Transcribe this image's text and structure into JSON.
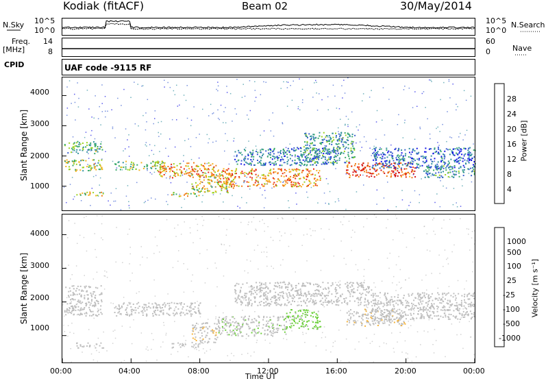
{
  "header": {
    "station": "Kodiak (fitACF)",
    "beam": "Beam 02",
    "date": "30/May/2014"
  },
  "aux_panels": {
    "nsky_label": "N.Sky",
    "nsky_ticks": [
      "10^5",
      "10^0"
    ],
    "nsearch_label": "N.Search",
    "nsearch_ticks": [
      "10^5",
      "10^0"
    ],
    "freq_label": "Freq.",
    "freq_unit": "[MHz]",
    "freq_ticks": [
      "14",
      "8"
    ],
    "nave_label": "Nave",
    "nave_ticks": [
      "60",
      "0"
    ],
    "cpid_label": "CPID",
    "cpid_text": "UAF code -9115 RF"
  },
  "chart_data": [
    {
      "type": "heatmap",
      "name": "power-panel",
      "ylabel": "Slant Range [km]",
      "ylim": [
        200,
        4600
      ],
      "yticks": [
        1000,
        2000,
        3000,
        4000
      ],
      "xlim": [
        0,
        24
      ],
      "colorbar": {
        "label": "Power [dB]",
        "ticks": [
          "28",
          "24",
          "20",
          "16",
          "12",
          "8",
          "4"
        ],
        "range": [
          0,
          32
        ],
        "colors": [
          "#1414e6",
          "#3a5fd0",
          "#2f8f9e",
          "#3aaa6a",
          "#9bd21e",
          "#f5b21e",
          "#f07a14",
          "#e62814",
          "#d20f0f"
        ]
      },
      "bands": [
        {
          "t0": 0.1,
          "t1": 2.3,
          "r0": 2100,
          "r1": 2500,
          "power": 12
        },
        {
          "t0": 0.1,
          "t1": 2.3,
          "r0": 1500,
          "r1": 1900,
          "power": 16
        },
        {
          "t0": 0.8,
          "t1": 2.4,
          "r0": 700,
          "r1": 850,
          "power": 18
        },
        {
          "t0": 3.0,
          "t1": 6.0,
          "r0": 1550,
          "r1": 1850,
          "power": 14
        },
        {
          "t0": 5.5,
          "t1": 9.0,
          "r0": 1300,
          "r1": 1800,
          "power": 22
        },
        {
          "t0": 6.3,
          "t1": 8.0,
          "r0": 680,
          "r1": 820,
          "power": 18
        },
        {
          "t0": 7.5,
          "t1": 10.0,
          "r0": 800,
          "r1": 1400,
          "power": 18
        },
        {
          "t0": 9.0,
          "t1": 15.0,
          "r0": 1000,
          "r1": 1600,
          "power": 22
        },
        {
          "t0": 10.0,
          "t1": 16.0,
          "r0": 1700,
          "r1": 2300,
          "power": 8
        },
        {
          "t0": 14.0,
          "t1": 17.0,
          "r0": 1800,
          "r1": 2800,
          "power": 10
        },
        {
          "t0": 16.5,
          "t1": 20.5,
          "r0": 1300,
          "r1": 1800,
          "power": 26
        },
        {
          "t0": 18.0,
          "t1": 24.0,
          "r0": 1600,
          "r1": 2300,
          "power": 6
        },
        {
          "t0": 21.0,
          "t1": 24.0,
          "r0": 1300,
          "r1": 1700,
          "power": 10
        }
      ]
    },
    {
      "type": "heatmap",
      "name": "velocity-panel",
      "ylabel": "Slant Range [km]",
      "ylim": [
        200,
        4600
      ],
      "yticks": [
        1000,
        2000,
        3000,
        4000
      ],
      "xlabel": "Time UT",
      "xlim": [
        0,
        24
      ],
      "xticks": [
        "00:00",
        "04:00",
        "08:00",
        "12:00",
        "16:00",
        "20:00",
        "00:00"
      ],
      "colorbar": {
        "label": "Velocity [m s⁻¹]",
        "ticks": [
          "1000",
          "500",
          "100",
          "25",
          "-25",
          "-100",
          "-500",
          "-1000"
        ],
        "range": [
          -1200,
          1200
        ],
        "colors": [
          "#e61414",
          "#f04a1e",
          "#f5871e",
          "#f5b43c",
          "#bebebe",
          "#bebebe",
          "#6ccf3a",
          "#3aaa4a",
          "#2a7a9e",
          "#2a4fc8"
        ]
      },
      "bands": [
        {
          "t0": 0.1,
          "t1": 2.3,
          "r0": 1600,
          "r1": 2500,
          "velocity": 0
        },
        {
          "t0": 3.0,
          "t1": 8.0,
          "r0": 1600,
          "r1": 2000,
          "velocity": 0
        },
        {
          "t0": 0.8,
          "t1": 2.4,
          "r0": 650,
          "r1": 800,
          "velocity": 0
        },
        {
          "t0": 6.3,
          "t1": 8.0,
          "r0": 650,
          "r1": 800,
          "velocity": 120
        },
        {
          "t0": 7.5,
          "t1": 9.0,
          "r0": 800,
          "r1": 1400,
          "velocity": -150
        },
        {
          "t0": 9.0,
          "t1": 13.0,
          "r0": 1000,
          "r1": 1600,
          "velocity": 150
        },
        {
          "t0": 13.0,
          "t1": 15.0,
          "r0": 1200,
          "r1": 1800,
          "velocity": 300
        },
        {
          "t0": 10.0,
          "t1": 18.0,
          "r0": 1900,
          "r1": 2600,
          "velocity": 0
        },
        {
          "t0": 16.5,
          "t1": 20.0,
          "r0": 1300,
          "r1": 1800,
          "velocity": -150
        },
        {
          "t0": 18.0,
          "t1": 24.0,
          "r0": 1500,
          "r1": 2300,
          "velocity": 0
        }
      ]
    }
  ]
}
